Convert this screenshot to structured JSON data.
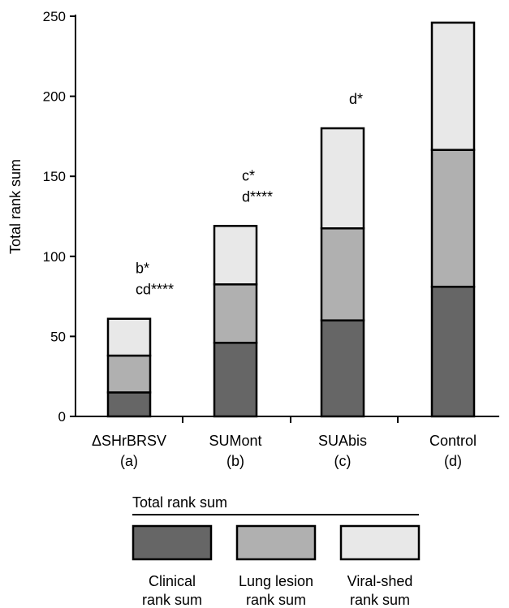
{
  "chart_data": {
    "type": "bar",
    "stacked": true,
    "ylabel": "Total rank sum",
    "ylim": [
      0,
      250
    ],
    "yticks": [
      0,
      50,
      100,
      150,
      200,
      250
    ],
    "grid": false,
    "legend_placement": "bottom",
    "categories": [
      {
        "name": "ΔSHrBRSV",
        "letter": "(a)"
      },
      {
        "name": "SUMont",
        "letter": "(b)"
      },
      {
        "name": "SUAbis",
        "letter": "(c)"
      },
      {
        "name": "Control",
        "letter": "(d)"
      }
    ],
    "series": [
      {
        "name": "Clinical rank sum",
        "values": [
          15,
          46,
          60,
          81
        ],
        "color": "#666666"
      },
      {
        "name": "Lung lesion rank sum",
        "values": [
          23,
          36.5,
          57.5,
          85.5
        ],
        "color": "#b0b0b0"
      },
      {
        "name": "Viral-shed rank sum",
        "values": [
          23,
          36.5,
          62.5,
          79.5
        ],
        "color": "#e8e8e8"
      }
    ],
    "annotations": [
      {
        "category": 0,
        "lines": [
          "b*",
          "cd****"
        ]
      },
      {
        "category": 1,
        "lines": [
          "c*",
          "d****"
        ]
      },
      {
        "category": 2,
        "lines": [
          "d*"
        ]
      },
      {
        "category": 3,
        "lines": []
      }
    ],
    "legend": {
      "title": "Total rank sum",
      "items": [
        {
          "label_lines": [
            "Clinical",
            "rank sum"
          ],
          "color": "#666666"
        },
        {
          "label_lines": [
            "Lung lesion",
            "rank sum"
          ],
          "color": "#b0b0b0"
        },
        {
          "label_lines": [
            "Viral-shed",
            "rank sum"
          ],
          "color": "#e8e8e8"
        }
      ]
    }
  }
}
